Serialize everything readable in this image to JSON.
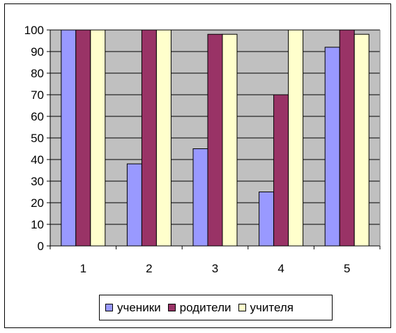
{
  "chart_data": {
    "type": "bar",
    "categories": [
      "1",
      "2",
      "3",
      "4",
      "5"
    ],
    "series": [
      {
        "name": "ученики",
        "color": "#9999ff",
        "values": [
          100,
          38,
          45,
          25,
          92
        ]
      },
      {
        "name": "родители",
        "color": "#993366",
        "values": [
          100,
          100,
          98,
          70,
          100
        ]
      },
      {
        "name": "учителя",
        "color": "#ffffcc",
        "values": [
          100,
          100,
          98,
          100,
          98
        ]
      }
    ],
    "ylim": [
      0,
      100
    ],
    "yticks": [
      "0",
      "10",
      "20",
      "30",
      "40",
      "50",
      "60",
      "70",
      "80",
      "90",
      "100"
    ],
    "plot_background": "#c0c0c0",
    "grid": true,
    "legend_position": "bottom",
    "title": "",
    "xlabel": "",
    "ylabel": ""
  }
}
